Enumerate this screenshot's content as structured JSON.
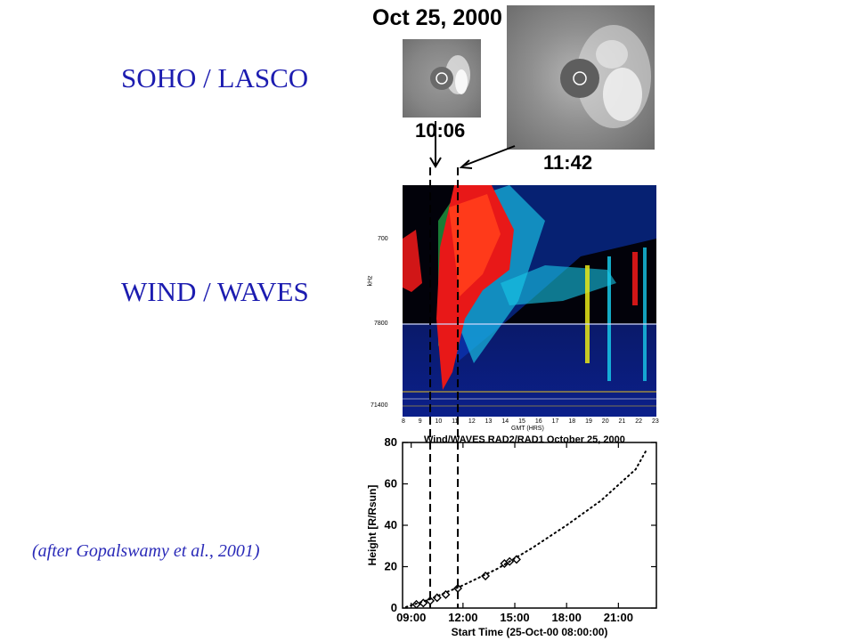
{
  "labels": {
    "soho": "SOHO / LASCO",
    "wind": "WIND / WAVES",
    "credit": "(after Gopalswamy et al., 2001)"
  },
  "lasco": {
    "date_title": "Oct 25, 2000",
    "time1": "10:06",
    "time2": "11:42"
  },
  "spectrogram": {
    "subtitle": "Wind/WAVES RAD2/RAD1 October 25, 2000",
    "ylabel": "kHz",
    "xlabel": "GMT (HRS)",
    "ytick_labels": [
      "700",
      "7800",
      "71400"
    ],
    "xtick_labels": [
      "8",
      "9",
      "10",
      "11",
      "12",
      "13",
      "14",
      "15",
      "16",
      "17",
      "18",
      "19",
      "20",
      "21",
      "22",
      "23"
    ]
  },
  "chart_data": {
    "type": "scatter",
    "title": "",
    "xlabel": "Start Time (25-Oct-00 08:00:00)",
    "ylabel": "Height [R/Rsun]",
    "xlim": [
      8.5,
      23.2
    ],
    "ylim": [
      0,
      80
    ],
    "xticks": [
      9,
      12,
      15,
      18,
      21
    ],
    "xtick_labels": [
      "09:00",
      "12:00",
      "15:00",
      "18:00",
      "21:00"
    ],
    "yticks": [
      0,
      20,
      40,
      60,
      80
    ],
    "ytick_labels": [
      "0",
      "20",
      "40",
      "60",
      "80"
    ],
    "markers": [
      {
        "x": 9.3,
        "y": 1.8
      },
      {
        "x": 9.7,
        "y": 2.4
      },
      {
        "x": 10.1,
        "y": 3.5
      },
      {
        "x": 10.5,
        "y": 5.0
      },
      {
        "x": 11.0,
        "y": 6.5
      },
      {
        "x": 11.7,
        "y": 9.5
      },
      {
        "x": 13.3,
        "y": 15.5
      },
      {
        "x": 14.4,
        "y": 21.5
      },
      {
        "x": 14.7,
        "y": 22.5
      },
      {
        "x": 15.1,
        "y": 23.5
      }
    ],
    "fit_line": [
      {
        "x": 8.7,
        "y": 0.5
      },
      {
        "x": 10,
        "y": 4
      },
      {
        "x": 12,
        "y": 11
      },
      {
        "x": 14,
        "y": 19
      },
      {
        "x": 16,
        "y": 29
      },
      {
        "x": 18,
        "y": 40
      },
      {
        "x": 20,
        "y": 52
      },
      {
        "x": 22,
        "y": 67
      },
      {
        "x": 22.6,
        "y": 76
      }
    ],
    "reference_lines_x": [
      10.1,
      11.7
    ]
  }
}
